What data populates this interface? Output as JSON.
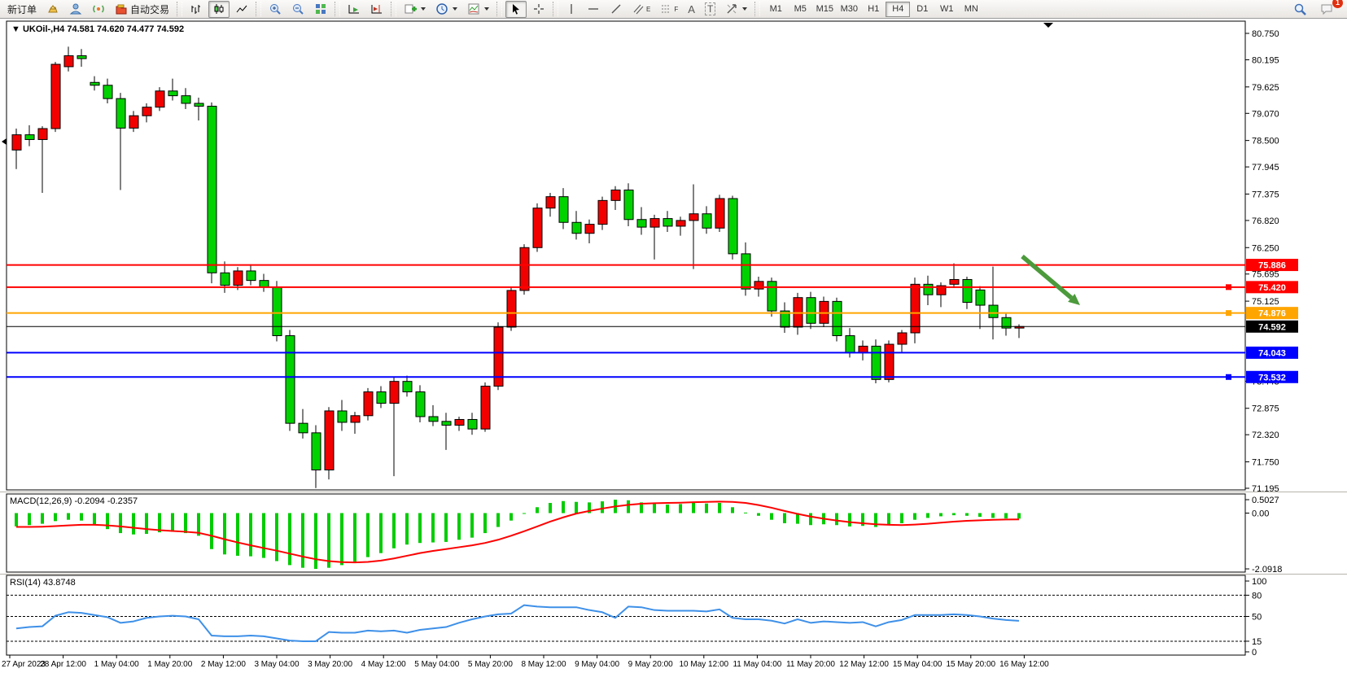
{
  "toolbar": {
    "new_order": "新订单",
    "autotrading": "自动交易",
    "timeframes": [
      "M1",
      "M5",
      "M15",
      "M30",
      "H1",
      "H4",
      "D1",
      "W1",
      "MN"
    ],
    "active_timeframe": "H4",
    "letters": {
      "channel": "E",
      "fibo": "F",
      "text": "A",
      "label": "T"
    },
    "badge": "1"
  },
  "chart": {
    "symbol": "UKOil-,H4",
    "ohlc": "74.581 74.620 74.477 74.592"
  },
  "chart_data": {
    "type": "candlestick",
    "symbol": "UKOil-",
    "timeframe": "H4",
    "title": "UKOil-,H4 74.581 74.620 74.477 74.592",
    "current_price": 74.592,
    "colors": {
      "bull": "#f20000",
      "bear": "#00d200",
      "wick": "#000000",
      "macd_hist": "#00cc00",
      "macd_signal": "#ff0000",
      "rsi": "#3e90e8",
      "level_red": "#ff0000",
      "level_orange": "#ffa500",
      "level_blue": "#0000ff",
      "arrow": "#4c9a3c"
    },
    "price_axis_ticks": [
      80.75,
      80.195,
      79.625,
      79.07,
      78.5,
      77.945,
      77.375,
      76.82,
      76.25,
      75.695,
      75.125,
      73.443,
      72.875,
      72.32,
      71.75,
      71.195
    ],
    "ylim": [
      71.195,
      80.75
    ],
    "levels": [
      {
        "price": 75.886,
        "color": "#ff0000",
        "marker": false
      },
      {
        "price": 75.42,
        "color": "#ff0000",
        "marker": true
      },
      {
        "price": 74.876,
        "color": "#ffa500",
        "marker": true
      },
      {
        "price": 74.043,
        "color": "#0000ff",
        "marker": false
      },
      {
        "price": 73.532,
        "color": "#0000ff",
        "marker": true
      }
    ],
    "x_labels": [
      "27 Apr 2023",
      "28 Apr 12:00",
      "1 May 04:00",
      "1 May 20:00",
      "2 May 12:00",
      "3 May 04:00",
      "3 May 20:00",
      "4 May 12:00",
      "5 May 04:00",
      "5 May 20:00",
      "8 May 12:00",
      "9 May 04:00",
      "9 May 20:00",
      "10 May 12:00",
      "11 May 04:00",
      "11 May 20:00",
      "12 May 12:00",
      "15 May 04:00",
      "15 May 20:00",
      "16 May 12:00"
    ],
    "candles": [
      [
        78.3,
        78.75,
        77.9,
        78.62
      ],
      [
        78.62,
        78.82,
        78.38,
        78.52
      ],
      [
        78.52,
        78.8,
        77.4,
        78.75
      ],
      [
        78.75,
        80.15,
        78.68,
        80.1
      ],
      [
        80.05,
        80.47,
        79.95,
        80.28
      ],
      [
        80.28,
        80.42,
        80.05,
        80.22
      ],
      [
        79.72,
        79.85,
        79.55,
        79.66
      ],
      [
        79.66,
        79.8,
        79.28,
        79.38
      ],
      [
        79.38,
        79.5,
        77.46,
        78.76
      ],
      [
        78.76,
        79.12,
        78.68,
        79.02
      ],
      [
        79.02,
        79.28,
        78.88,
        79.2
      ],
      [
        79.2,
        79.62,
        79.12,
        79.54
      ],
      [
        79.54,
        79.8,
        79.34,
        79.44
      ],
      [
        79.44,
        79.6,
        79.16,
        79.28
      ],
      [
        79.28,
        79.4,
        78.92,
        79.22
      ],
      [
        79.22,
        79.3,
        75.5,
        75.72
      ],
      [
        75.72,
        75.96,
        75.3,
        75.46
      ],
      [
        75.46,
        75.84,
        75.36,
        75.76
      ],
      [
        75.76,
        75.9,
        75.46,
        75.56
      ],
      [
        75.56,
        75.7,
        75.32,
        75.42
      ],
      [
        75.42,
        75.55,
        74.28,
        74.4
      ],
      [
        74.4,
        74.52,
        72.4,
        72.56
      ],
      [
        72.56,
        72.86,
        72.24,
        72.36
      ],
      [
        72.36,
        72.52,
        71.2,
        71.58
      ],
      [
        71.58,
        72.9,
        71.38,
        72.82
      ],
      [
        72.82,
        73.05,
        72.4,
        72.58
      ],
      [
        72.58,
        72.8,
        72.34,
        72.72
      ],
      [
        72.72,
        73.3,
        72.62,
        73.22
      ],
      [
        73.22,
        73.34,
        72.88,
        72.98
      ],
      [
        72.98,
        73.52,
        71.45,
        73.44
      ],
      [
        73.44,
        73.56,
        73.12,
        73.22
      ],
      [
        73.22,
        73.36,
        72.58,
        72.7
      ],
      [
        72.7,
        72.94,
        72.5,
        72.6
      ],
      [
        72.6,
        72.78,
        72.0,
        72.52
      ],
      [
        72.52,
        72.7,
        72.4,
        72.64
      ],
      [
        72.64,
        72.78,
        72.32,
        72.44
      ],
      [
        72.44,
        73.42,
        72.38,
        73.34
      ],
      [
        73.34,
        74.68,
        73.26,
        74.58
      ],
      [
        74.58,
        75.42,
        74.5,
        75.35
      ],
      [
        75.35,
        76.32,
        75.26,
        76.25
      ],
      [
        76.25,
        77.18,
        76.16,
        77.08
      ],
      [
        77.08,
        77.4,
        76.9,
        77.32
      ],
      [
        77.32,
        77.5,
        76.64,
        76.78
      ],
      [
        76.78,
        77.02,
        76.42,
        76.55
      ],
      [
        76.55,
        76.84,
        76.34,
        76.74
      ],
      [
        76.74,
        77.32,
        76.62,
        77.24
      ],
      [
        77.24,
        77.54,
        77.04,
        77.46
      ],
      [
        77.46,
        77.6,
        76.7,
        76.84
      ],
      [
        76.84,
        77.1,
        76.52,
        76.68
      ],
      [
        76.68,
        76.94,
        76.0,
        76.86
      ],
      [
        76.86,
        77.02,
        76.58,
        76.7
      ],
      [
        76.7,
        76.9,
        76.5,
        76.82
      ],
      [
        76.82,
        77.58,
        75.8,
        76.96
      ],
      [
        76.96,
        77.12,
        76.54,
        76.66
      ],
      [
        76.66,
        77.36,
        76.58,
        77.28
      ],
      [
        77.28,
        77.34,
        76.0,
        76.12
      ],
      [
        76.12,
        76.36,
        75.24,
        75.38
      ],
      [
        75.38,
        75.64,
        75.22,
        75.54
      ],
      [
        75.54,
        75.62,
        74.8,
        74.92
      ],
      [
        74.92,
        75.1,
        74.46,
        74.58
      ],
      [
        74.58,
        75.3,
        74.42,
        75.2
      ],
      [
        75.2,
        75.32,
        74.54,
        74.66
      ],
      [
        74.66,
        75.22,
        74.58,
        75.12
      ],
      [
        75.12,
        75.2,
        74.28,
        74.4
      ],
      [
        74.4,
        74.56,
        73.94,
        74.04
      ],
      [
        74.04,
        74.3,
        73.88,
        74.18
      ],
      [
        74.18,
        74.32,
        73.4,
        73.48
      ],
      [
        73.48,
        74.3,
        73.42,
        74.22
      ],
      [
        74.22,
        74.52,
        74.04,
        74.46
      ],
      [
        74.46,
        75.62,
        74.24,
        75.48
      ],
      [
        75.48,
        75.66,
        75.04,
        75.26
      ],
      [
        75.26,
        75.52,
        75.0,
        75.45
      ],
      [
        75.48,
        75.92,
        75.4,
        75.58
      ],
      [
        75.58,
        75.64,
        74.96,
        75.1
      ],
      [
        75.36,
        75.44,
        74.54,
        75.04
      ],
      [
        75.04,
        75.85,
        74.32,
        74.78
      ],
      [
        74.78,
        74.86,
        74.4,
        74.56
      ],
      [
        74.56,
        74.64,
        74.35,
        74.592
      ]
    ],
    "macd": {
      "label": "MACD(12,26,9) -0.2094 -0.2357",
      "scale_values": [
        0.5027,
        0,
        -2.0918
      ],
      "scale_labels": [
        "0.5027",
        "0.00",
        "-2.0918"
      ],
      "histogram": [
        -0.5,
        -0.45,
        -0.4,
        -0.3,
        -0.25,
        -0.28,
        -0.42,
        -0.6,
        -0.75,
        -0.8,
        -0.78,
        -0.72,
        -0.7,
        -0.75,
        -0.85,
        -1.35,
        -1.55,
        -1.6,
        -1.62,
        -1.68,
        -1.8,
        -1.95,
        -2.05,
        -2.0918,
        -2.05,
        -1.95,
        -1.82,
        -1.65,
        -1.5,
        -1.32,
        -1.18,
        -1.12,
        -1.1,
        -1.08,
        -1.0,
        -0.92,
        -0.75,
        -0.52,
        -0.28,
        -0.02,
        0.22,
        0.38,
        0.45,
        0.42,
        0.4,
        0.44,
        0.5027,
        0.48,
        0.4,
        0.35,
        0.32,
        0.34,
        0.4,
        0.36,
        0.38,
        0.22,
        0.02,
        -0.1,
        -0.25,
        -0.38,
        -0.4,
        -0.45,
        -0.42,
        -0.45,
        -0.5,
        -0.48,
        -0.52,
        -0.45,
        -0.38,
        -0.25,
        -0.18,
        -0.12,
        -0.08,
        -0.1,
        -0.14,
        -0.18,
        -0.2,
        -0.2094
      ],
      "signal": [
        -0.52,
        -0.52,
        -0.51,
        -0.49,
        -0.46,
        -0.44,
        -0.44,
        -0.46,
        -0.5,
        -0.55,
        -0.6,
        -0.64,
        -0.67,
        -0.7,
        -0.74,
        -0.85,
        -0.98,
        -1.1,
        -1.21,
        -1.31,
        -1.41,
        -1.52,
        -1.63,
        -1.73,
        -1.8,
        -1.84,
        -1.85,
        -1.83,
        -1.78,
        -1.7,
        -1.6,
        -1.5,
        -1.42,
        -1.35,
        -1.28,
        -1.21,
        -1.12,
        -1.0,
        -0.85,
        -0.68,
        -0.5,
        -0.32,
        -0.16,
        -0.02,
        0.08,
        0.17,
        0.25,
        0.31,
        0.35,
        0.37,
        0.38,
        0.39,
        0.41,
        0.42,
        0.43,
        0.42,
        0.38,
        0.3,
        0.2,
        0.08,
        -0.03,
        -0.13,
        -0.21,
        -0.28,
        -0.34,
        -0.38,
        -0.42,
        -0.44,
        -0.45,
        -0.43,
        -0.4,
        -0.36,
        -0.32,
        -0.29,
        -0.27,
        -0.25,
        -0.24,
        -0.2357
      ]
    },
    "rsi": {
      "label": "RSI(14) 43.8748",
      "levels": [
        80,
        50,
        15
      ],
      "scale_labels": [
        100,
        80,
        50,
        15,
        0
      ],
      "values": [
        33,
        35,
        36,
        51,
        56,
        55,
        52,
        49,
        41,
        43,
        48,
        50,
        51,
        50,
        46,
        23,
        22,
        22,
        23,
        22,
        19,
        16,
        15,
        15,
        28,
        27,
        27,
        30,
        29,
        30,
        27,
        31,
        33,
        35,
        41,
        46,
        50,
        53,
        54,
        66,
        64,
        63,
        63,
        63,
        59,
        56,
        48,
        64,
        63,
        59,
        58,
        58,
        58,
        57,
        60,
        48,
        46,
        46,
        44,
        40,
        46,
        41,
        43,
        42,
        41,
        42,
        36,
        42,
        45,
        52,
        52,
        52,
        53,
        52,
        50,
        47,
        45,
        43.8748
      ]
    },
    "annotation_arrow": {
      "from": [
        1256,
        315
      ],
      "to": [
        1327,
        375
      ],
      "color": "#4c9a3c"
    }
  }
}
